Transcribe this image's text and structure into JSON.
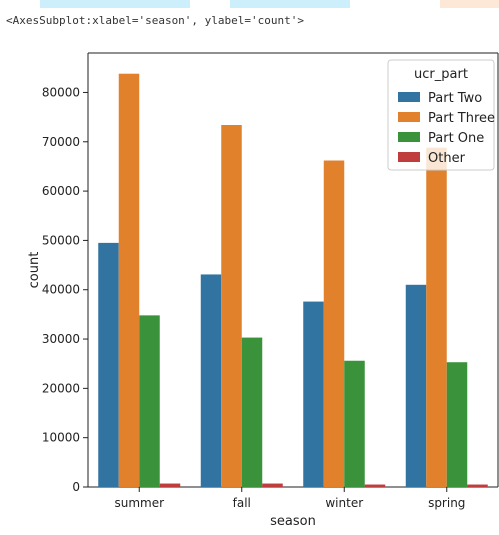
{
  "cell_output": {
    "repr_text": "<AxesSubplot:xlabel='season', ylabel='count'>"
  },
  "top_strip_colors": [
    "#ffffff",
    "#cdeffc",
    "#ffffff",
    "#cdeffc",
    "#ffffff",
    "#fde8d8"
  ],
  "chart_data": {
    "type": "bar",
    "categories": [
      "summer",
      "fall",
      "winter",
      "spring"
    ],
    "series": [
      {
        "name": "Part Two",
        "color": "#3274a1",
        "values": [
          49500,
          43100,
          37600,
          41000
        ]
      },
      {
        "name": "Part Three",
        "color": "#e1812c",
        "values": [
          83800,
          73400,
          66200,
          68800
        ]
      },
      {
        "name": "Part One",
        "color": "#3a923a",
        "values": [
          34800,
          30300,
          25600,
          25300
        ]
      },
      {
        "name": "Other",
        "color": "#c03d3e",
        "values": [
          700,
          700,
          500,
          500
        ]
      }
    ],
    "xlabel": "season",
    "ylabel": "count",
    "ylim": [
      0,
      88000
    ],
    "yticks": [
      0,
      10000,
      20000,
      30000,
      40000,
      50000,
      60000,
      70000,
      80000
    ],
    "legend": {
      "title": "ucr_part",
      "placement": "top-right"
    },
    "grid": false
  }
}
